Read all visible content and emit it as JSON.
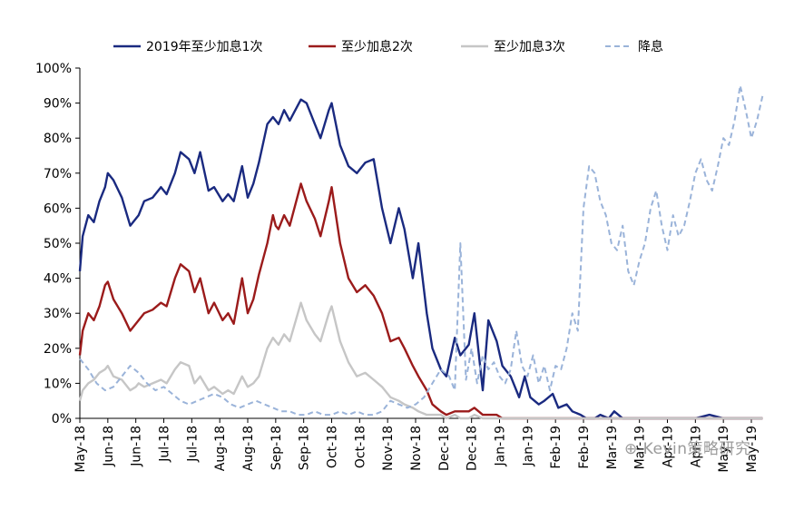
{
  "chart_data": {
    "type": "line",
    "y_format": "percent",
    "ylim": [
      0,
      100
    ],
    "y_ticks": [
      0,
      10,
      20,
      30,
      40,
      50,
      60,
      70,
      80,
      90,
      100
    ],
    "x_tick_labels": [
      "May-18",
      "Jun-18",
      "Jun-18",
      "Jul-18",
      "Jul-18",
      "Aug-18",
      "Aug-18",
      "Sep-18",
      "Sep-18",
      "Oct-18",
      "Oct-18",
      "Nov-18",
      "Nov-18",
      "Dec-18",
      "Dec-18",
      "Jan-19",
      "Jan-19",
      "Feb-19",
      "Feb-19",
      "Mar-19",
      "Mar-19",
      "Apr-19",
      "Apr-19",
      "May-19",
      "May-19"
    ],
    "legend_position": "top",
    "series": [
      {
        "name": "2019年至少加息1次",
        "color": "#1a2a80",
        "dash": "solid",
        "x": [
          0,
          0.1,
          0.3,
          0.5,
          0.7,
          0.9,
          1.0,
          1.2,
          1.5,
          1.8,
          2.0,
          2.1,
          2.3,
          2.6,
          2.9,
          3.1,
          3.4,
          3.6,
          3.9,
          4.1,
          4.3,
          4.6,
          4.8,
          5.1,
          5.3,
          5.5,
          5.8,
          6.0,
          6.2,
          6.4,
          6.7,
          6.9,
          7.0,
          7.1,
          7.3,
          7.5,
          7.9,
          8.1,
          8.4,
          8.6,
          8.9,
          9.0,
          9.3,
          9.6,
          9.9,
          10.2,
          10.5,
          10.8,
          11.1,
          11.4,
          11.6,
          11.9,
          12.1,
          12.4,
          12.6,
          12.9,
          13.1,
          13.4,
          13.6,
          13.9,
          14.1,
          14.4,
          14.6,
          14.9,
          15.1,
          15.4,
          15.7,
          15.9,
          16.1,
          16.4,
          16.6,
          16.9,
          17.1,
          17.4,
          17.6,
          17.9,
          18.1,
          18.4,
          18.6,
          18.9,
          19.1,
          19.4,
          19.6,
          20.0,
          20.5,
          21.0,
          21.5,
          22.0,
          22.5,
          23.0,
          23.5,
          24.0,
          24.4
        ],
        "y": [
          42,
          52,
          58,
          56,
          62,
          66,
          70,
          68,
          63,
          55,
          57,
          58,
          62,
          63,
          66,
          64,
          70,
          76,
          74,
          70,
          76,
          65,
          66,
          62,
          64,
          62,
          72,
          63,
          67,
          73,
          84,
          86,
          85,
          84,
          88,
          85,
          91,
          90,
          84,
          80,
          88,
          90,
          78,
          72,
          70,
          73,
          74,
          60,
          50,
          60,
          54,
          40,
          50,
          30,
          20,
          14,
          12,
          23,
          18,
          21,
          30,
          8,
          28,
          22,
          15,
          12,
          6,
          12,
          6,
          4,
          5,
          7,
          3,
          4,
          2,
          1,
          0,
          0,
          1,
          0,
          2,
          0,
          0,
          0,
          0,
          0,
          0,
          0,
          1,
          0,
          0,
          0,
          0
        ]
      },
      {
        "name": "至少加息2次",
        "color": "#9b1b1b",
        "dash": "solid",
        "x": [
          0,
          0.1,
          0.3,
          0.5,
          0.7,
          0.9,
          1.0,
          1.2,
          1.5,
          1.8,
          2.0,
          2.1,
          2.3,
          2.6,
          2.9,
          3.1,
          3.4,
          3.6,
          3.9,
          4.1,
          4.3,
          4.6,
          4.8,
          5.1,
          5.3,
          5.5,
          5.8,
          6.0,
          6.2,
          6.4,
          6.7,
          6.9,
          7.0,
          7.1,
          7.3,
          7.5,
          7.9,
          8.1,
          8.4,
          8.6,
          8.9,
          9.0,
          9.3,
          9.6,
          9.9,
          10.2,
          10.5,
          10.8,
          11.1,
          11.4,
          11.6,
          11.9,
          12.1,
          12.4,
          12.6,
          12.9,
          13.1,
          13.4,
          13.6,
          13.9,
          14.1,
          14.4,
          14.6,
          14.9,
          15.1,
          15.4,
          15.7,
          15.9,
          16.1,
          16.4,
          16.6,
          16.9,
          17.1,
          17.4,
          17.6,
          17.9,
          18.1,
          18.4,
          18.6,
          18.9,
          19.1,
          19.4,
          19.6,
          20.0,
          20.5,
          21.0,
          21.5,
          22.0,
          22.5,
          23.0,
          23.5,
          24.0,
          24.4
        ],
        "y": [
          18,
          25,
          30,
          28,
          32,
          38,
          39,
          34,
          30,
          25,
          27,
          28,
          30,
          31,
          33,
          32,
          40,
          44,
          42,
          36,
          40,
          30,
          33,
          28,
          30,
          27,
          40,
          30,
          34,
          41,
          50,
          58,
          55,
          54,
          58,
          55,
          67,
          62,
          57,
          52,
          62,
          66,
          50,
          40,
          36,
          38,
          35,
          30,
          22,
          23,
          20,
          15,
          12,
          8,
          4,
          2,
          1,
          2,
          2,
          2,
          3,
          1,
          1,
          1,
          0,
          0,
          0,
          0,
          0,
          0,
          0,
          0,
          0,
          0,
          0,
          0,
          0,
          0,
          0,
          0,
          0,
          0,
          0,
          0,
          0,
          0,
          0,
          0,
          0,
          0,
          0,
          0,
          0
        ]
      },
      {
        "name": "至少加息3次",
        "color": "#c6c6c6",
        "dash": "solid",
        "x": [
          0,
          0.1,
          0.3,
          0.5,
          0.7,
          0.9,
          1.0,
          1.2,
          1.5,
          1.8,
          2.0,
          2.1,
          2.3,
          2.6,
          2.9,
          3.1,
          3.4,
          3.6,
          3.9,
          4.1,
          4.3,
          4.6,
          4.8,
          5.1,
          5.3,
          5.5,
          5.8,
          6.0,
          6.2,
          6.4,
          6.7,
          6.9,
          7.0,
          7.1,
          7.3,
          7.5,
          7.9,
          8.1,
          8.4,
          8.6,
          8.9,
          9.0,
          9.3,
          9.6,
          9.9,
          10.2,
          10.5,
          10.8,
          11.1,
          11.4,
          11.6,
          11.9,
          12.1,
          12.4,
          12.6,
          12.9,
          13.1,
          13.4,
          13.6,
          13.9,
          14.1,
          14.4,
          14.6,
          14.9,
          15.1,
          15.4,
          15.7,
          15.9,
          16.1,
          16.4,
          16.6,
          16.9,
          17.1,
          17.4,
          17.6,
          17.9,
          18.1,
          18.4,
          18.6,
          18.9,
          19.1,
          19.4,
          19.6,
          20.0,
          20.5,
          21.0,
          21.5,
          22.0,
          22.5,
          23.0,
          23.5,
          24.0,
          24.4
        ],
        "y": [
          5,
          8,
          10,
          11,
          13,
          14,
          15,
          12,
          11,
          8,
          9,
          10,
          9,
          10,
          11,
          10,
          14,
          16,
          15,
          10,
          12,
          8,
          9,
          7,
          8,
          7,
          12,
          9,
          10,
          12,
          20,
          23,
          22,
          21,
          24,
          22,
          33,
          28,
          24,
          22,
          30,
          32,
          22,
          16,
          12,
          13,
          11,
          9,
          6,
          5,
          4,
          3,
          2,
          1,
          1,
          1,
          0,
          1,
          0,
          0,
          1,
          0,
          0,
          0,
          0,
          0,
          0,
          0,
          0,
          0,
          0,
          0,
          0,
          0,
          0,
          0,
          0,
          0,
          0,
          0,
          0,
          0,
          0,
          0,
          0,
          0,
          0,
          0,
          0,
          0,
          0,
          0,
          0
        ]
      },
      {
        "name": "降息",
        "color": "#9ab3d9",
        "dash": "dashed",
        "x": [
          0,
          0.3,
          0.6,
          0.9,
          1.2,
          1.5,
          1.8,
          2.1,
          2.4,
          2.7,
          3.0,
          3.3,
          3.6,
          3.9,
          4.2,
          4.5,
          4.8,
          5.1,
          5.4,
          5.7,
          6.0,
          6.3,
          6.6,
          6.9,
          7.2,
          7.5,
          7.8,
          8.1,
          8.4,
          8.7,
          9.0,
          9.3,
          9.6,
          9.9,
          10.2,
          10.5,
          10.8,
          11.1,
          11.4,
          11.7,
          12.0,
          12.3,
          12.6,
          12.9,
          13.2,
          13.4,
          13.6,
          13.8,
          14.0,
          14.2,
          14.4,
          14.6,
          14.8,
          15.0,
          15.2,
          15.4,
          15.6,
          15.8,
          16.0,
          16.2,
          16.4,
          16.6,
          16.8,
          17.0,
          17.2,
          17.4,
          17.6,
          17.8,
          18.0,
          18.2,
          18.4,
          18.6,
          18.8,
          19.0,
          19.2,
          19.4,
          19.6,
          19.8,
          20.0,
          20.2,
          20.4,
          20.6,
          20.8,
          21.0,
          21.2,
          21.4,
          21.6,
          21.8,
          22.0,
          22.2,
          22.4,
          22.6,
          22.8,
          23.0,
          23.2,
          23.4,
          23.6,
          23.8,
          24.0,
          24.2,
          24.4
        ],
        "y": [
          17,
          14,
          10,
          8,
          9,
          12,
          15,
          13,
          10,
          8,
          9,
          7,
          5,
          4,
          5,
          6,
          7,
          6,
          4,
          3,
          4,
          5,
          4,
          3,
          2,
          2,
          1,
          1,
          2,
          1,
          1,
          2,
          1,
          2,
          1,
          1,
          2,
          5,
          4,
          3,
          4,
          6,
          10,
          14,
          12,
          8,
          50,
          11,
          20,
          10,
          18,
          14,
          16,
          12,
          10,
          14,
          25,
          15,
          12,
          18,
          10,
          15,
          8,
          15,
          14,
          20,
          30,
          25,
          60,
          72,
          70,
          62,
          58,
          50,
          48,
          55,
          42,
          38,
          45,
          50,
          60,
          65,
          55,
          48,
          58,
          52,
          55,
          62,
          70,
          74,
          68,
          65,
          72,
          80,
          78,
          85,
          95,
          88,
          80,
          85,
          92
        ]
      }
    ]
  },
  "watermark": "Kevin策略研究"
}
